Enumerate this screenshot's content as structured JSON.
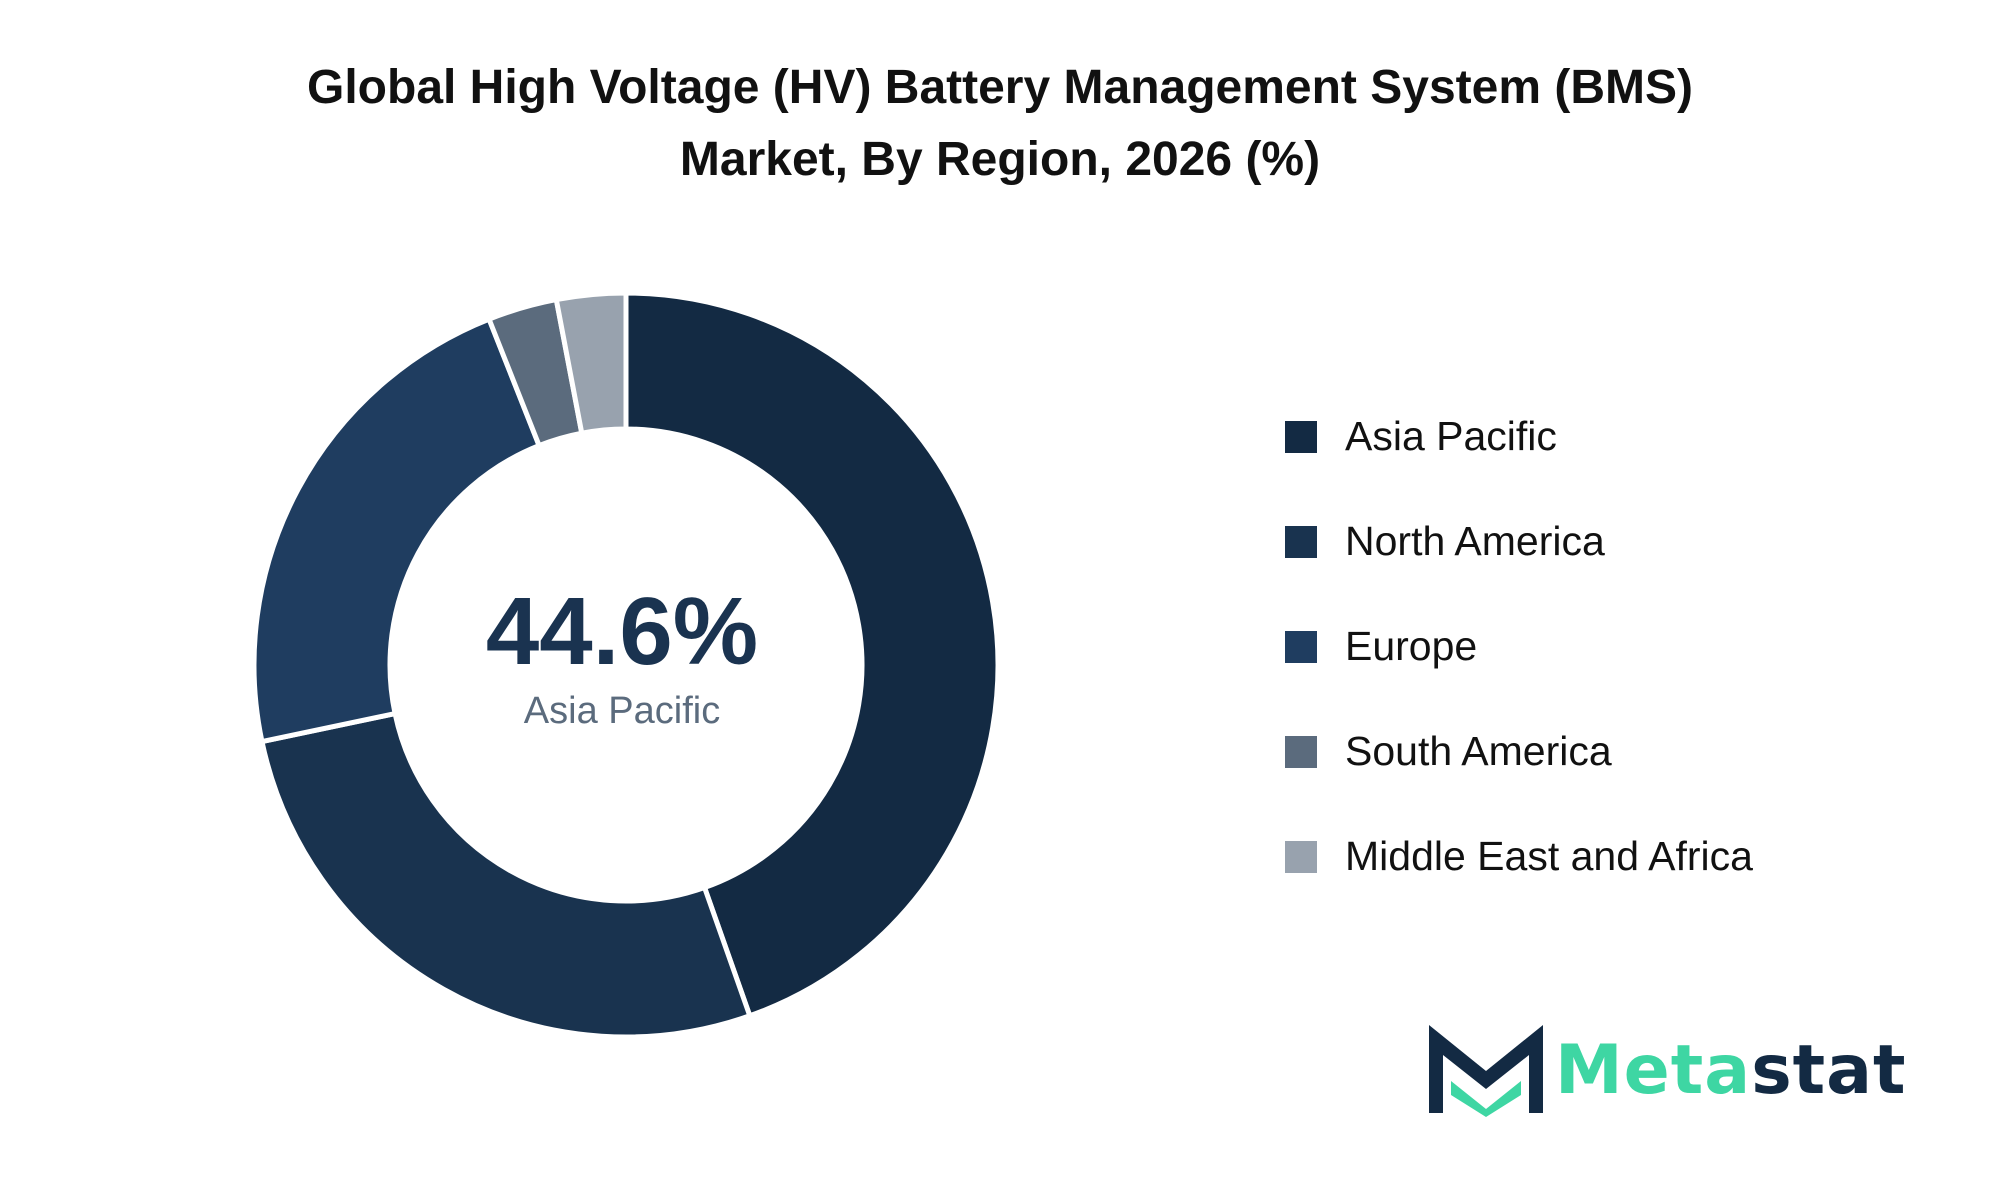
{
  "title_line1": "Global High Voltage (HV) Battery Management System (BMS)",
  "title_line2": "Market, By Region, 2026 (%)",
  "center": {
    "value": "44.6%",
    "label": "Asia Pacific"
  },
  "chart_data": {
    "type": "pie",
    "title": "Global High Voltage (HV) Battery Management System (BMS) Market, By Region, 2026 (%)",
    "donut": true,
    "legend_position": "right",
    "categories": [
      "Asia Pacific",
      "North America",
      "Europe",
      "South America",
      "Middle East and Africa"
    ],
    "values": [
      44.6,
      27.1,
      22.3,
      3.0,
      3.0
    ],
    "colors": [
      "#132a43",
      "#19334f",
      "#1f3d60",
      "#5b6b7d",
      "#98a2ae"
    ]
  },
  "logo": {
    "part1": "Meta",
    "part2": "stat",
    "colors": {
      "accent": "#3ed6a3",
      "dark": "#132a43"
    }
  },
  "colors": {
    "center_value": "#1a3350",
    "center_label": "#5b6b7d"
  }
}
